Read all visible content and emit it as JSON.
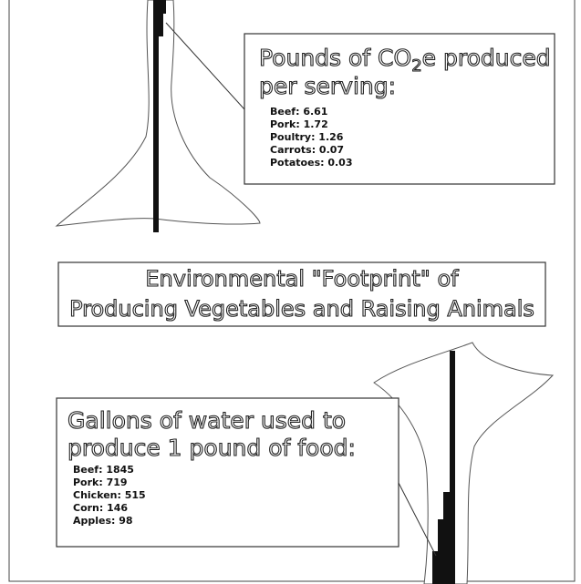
{
  "co2_box": {
    "heading": [
      "Pounds of CO",
      "2",
      "e produced",
      "per serving:"
    ],
    "items": [
      "Beef: 6.61",
      "Pork: 1.72",
      "Poultry: 1.26",
      "Carrots: 0.07",
      "Potatoes: 0.03"
    ]
  },
  "title": [
    "Environmental \"Footprint\" of",
    "Producing Vegetables and Raising Animals"
  ],
  "water_box": {
    "heading": [
      "Gallons of water used to",
      "produce 1 pound of food:"
    ],
    "items": [
      "Beef: 1845",
      "Pork: 719",
      "Chicken: 515",
      "Corn: 146",
      "Apples: 98"
    ]
  }
}
